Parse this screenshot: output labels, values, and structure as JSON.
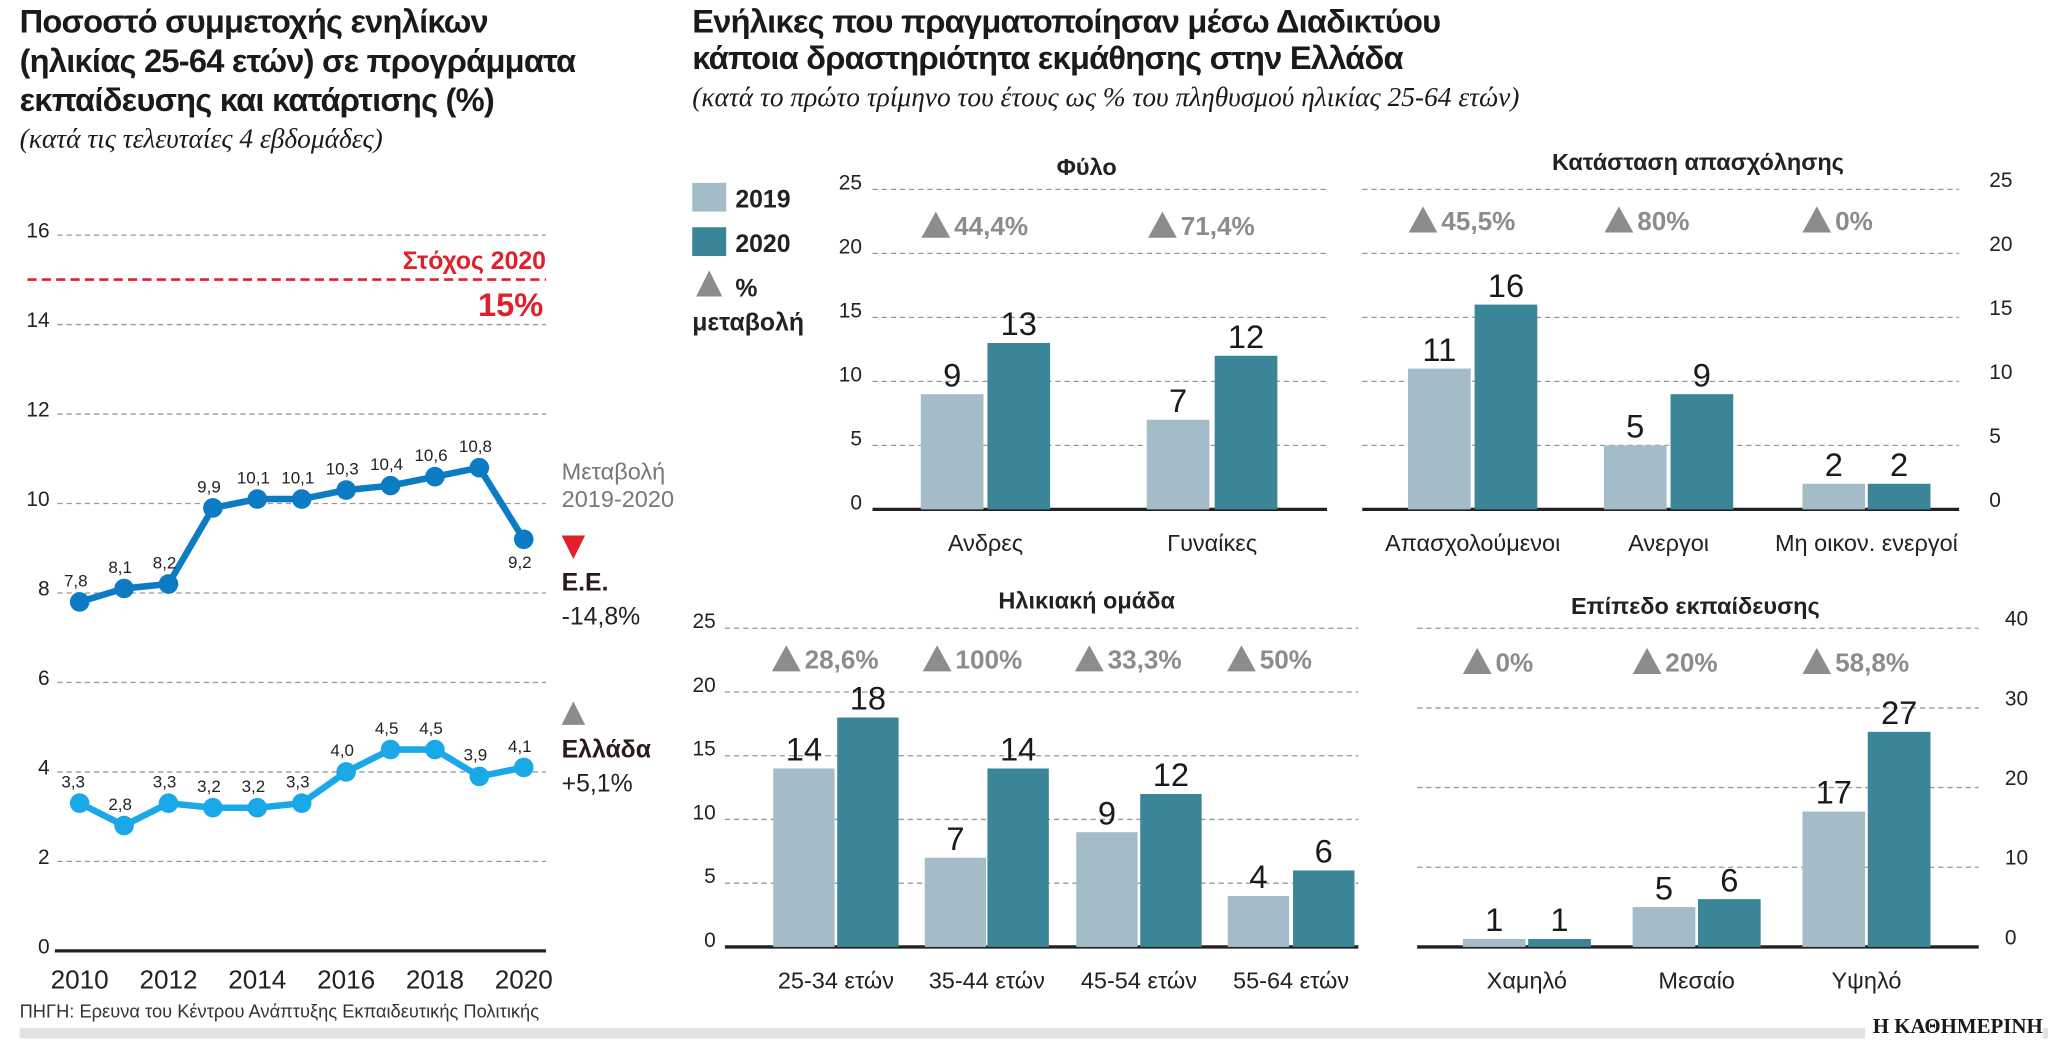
{
  "left": {
    "title_lines": [
      "Ποσοστό συμμετοχής ενηλίκων",
      "(ηλικίας 25-64 ετών) σε προγράμματα",
      "εκπαίδευσης και κατάρτισης (%)"
    ],
    "subtitle": "(κατά τις τελευταίες 4 εβδομάδες)",
    "change_label_1": "Μεταβολή",
    "change_label_2": "2019-2020",
    "target_label": "Στόχος 2020",
    "target_value_label": "15%",
    "eu_label": "Ε.Ε.",
    "eu_change": "-14,8%",
    "greece_label": "Ελλάδα",
    "greece_change": "+5,1%",
    "source": "ΠΗΓΗ: Ερευνα του Κέντρου Ανάπτυξης Εκπαιδευτικής Πολιτικής"
  },
  "right": {
    "title_lines": [
      "Ενήλικες που πραγματοποίησαν μέσω Διαδικτύου",
      "κάποια δραστηριότητα εκμάθησης στην Ελλάδα"
    ],
    "subtitle": "(κατά το πρώτο τρίμηνο του έτους ως % του πληθυσμού ηλικίας 25-64 ετών)",
    "legend": {
      "y2019": "2019",
      "y2020": "2020",
      "pct": "%",
      "change": "μεταβολή"
    }
  },
  "brand": "Η ΚΑΘΗΜΕΡΙΝΗ",
  "colors": {
    "eu": "#0b7bc4",
    "greece": "#1aa9e8",
    "target": "#e0202a",
    "bar2019": "#a3bcc8",
    "bar2020": "#3a8598",
    "change": "#8c8c8c",
    "decrease": "#e0202a"
  },
  "chart_data": [
    {
      "type": "line",
      "x": [
        2010,
        2011,
        2012,
        2013,
        2014,
        2015,
        2016,
        2017,
        2018,
        2019,
        2020
      ],
      "x_ticks": [
        "2010",
        "2012",
        "2014",
        "2016",
        "2018",
        "2020"
      ],
      "y_ticks": [
        "0",
        "2",
        "4",
        "6",
        "8",
        "10",
        "12",
        "14",
        "16"
      ],
      "ylim": [
        0,
        16
      ],
      "grid": true,
      "target": 15,
      "series": [
        {
          "name": "Ε.Ε.",
          "values": [
            7.8,
            8.1,
            8.2,
            9.9,
            10.1,
            10.1,
            10.3,
            10.4,
            10.6,
            10.8,
            9.2
          ],
          "labels": [
            "7,8",
            "8,1",
            "8,2",
            "9,9",
            "10,1",
            "10,1",
            "10,3",
            "10,4",
            "10,6",
            "10,8",
            "9,2"
          ]
        },
        {
          "name": "Ελλάδα",
          "values": [
            3.3,
            2.8,
            3.3,
            3.2,
            3.2,
            3.3,
            4.0,
            4.5,
            4.5,
            3.9,
            4.1
          ],
          "labels": [
            "3,3",
            "2,8",
            "3,3",
            "3,2",
            "3,2",
            "3,3",
            "4,0",
            "4,5",
            "4,5",
            "3,9",
            "4,1"
          ]
        }
      ]
    },
    {
      "type": "bar",
      "title": "Φύλο",
      "categories": [
        "Ανδρες",
        "Γυναίκες"
      ],
      "series": [
        {
          "name": "2019",
          "values": [
            9,
            7
          ]
        },
        {
          "name": "2020",
          "values": [
            13,
            12
          ]
        }
      ],
      "changes": [
        "44,4%",
        "71,4%"
      ],
      "y_ticks": [
        "0",
        "5",
        "10",
        "15",
        "20",
        "25"
      ],
      "ylim": [
        0,
        25
      ],
      "axis_side": "left"
    },
    {
      "type": "bar",
      "title": "Κατάσταση απασχόλησης",
      "categories": [
        "Απασχολούμενοι",
        "Ανεργοι",
        "Μη οικον. ενεργοί"
      ],
      "series": [
        {
          "name": "2019",
          "values": [
            11,
            5,
            2
          ]
        },
        {
          "name": "2020",
          "values": [
            16,
            9,
            2
          ]
        }
      ],
      "changes": [
        "45,5%",
        "80%",
        "0%"
      ],
      "y_ticks": [
        "0",
        "5",
        "10",
        "15",
        "20",
        "25"
      ],
      "ylim": [
        0,
        25
      ],
      "axis_side": "right"
    },
    {
      "type": "bar",
      "title": "Ηλικιακή ομάδα",
      "categories": [
        "25-34 ετών",
        "35-44 ετών",
        "45-54 ετών",
        "55-64 ετών"
      ],
      "series": [
        {
          "name": "2019",
          "values": [
            14,
            7,
            9,
            4
          ]
        },
        {
          "name": "2020",
          "values": [
            18,
            14,
            12,
            6
          ]
        }
      ],
      "changes": [
        "28,6%",
        "100%",
        "33,3%",
        "50%"
      ],
      "y_ticks": [
        "0",
        "5",
        "10",
        "15",
        "20",
        "25"
      ],
      "ylim": [
        0,
        25
      ],
      "axis_side": "left"
    },
    {
      "type": "bar",
      "title": "Επίπεδο εκπαίδευσης",
      "categories": [
        "Χαμηλό",
        "Μεσαίο",
        "Υψηλό"
      ],
      "series": [
        {
          "name": "2019",
          "values": [
            1,
            5,
            17
          ]
        },
        {
          "name": "2020",
          "values": [
            1,
            6,
            27
          ]
        }
      ],
      "changes": [
        "0%",
        "20%",
        "58,8%"
      ],
      "y_ticks": [
        "0",
        "10",
        "20",
        "30",
        "40"
      ],
      "ylim": [
        0,
        40
      ],
      "axis_side": "right"
    }
  ]
}
